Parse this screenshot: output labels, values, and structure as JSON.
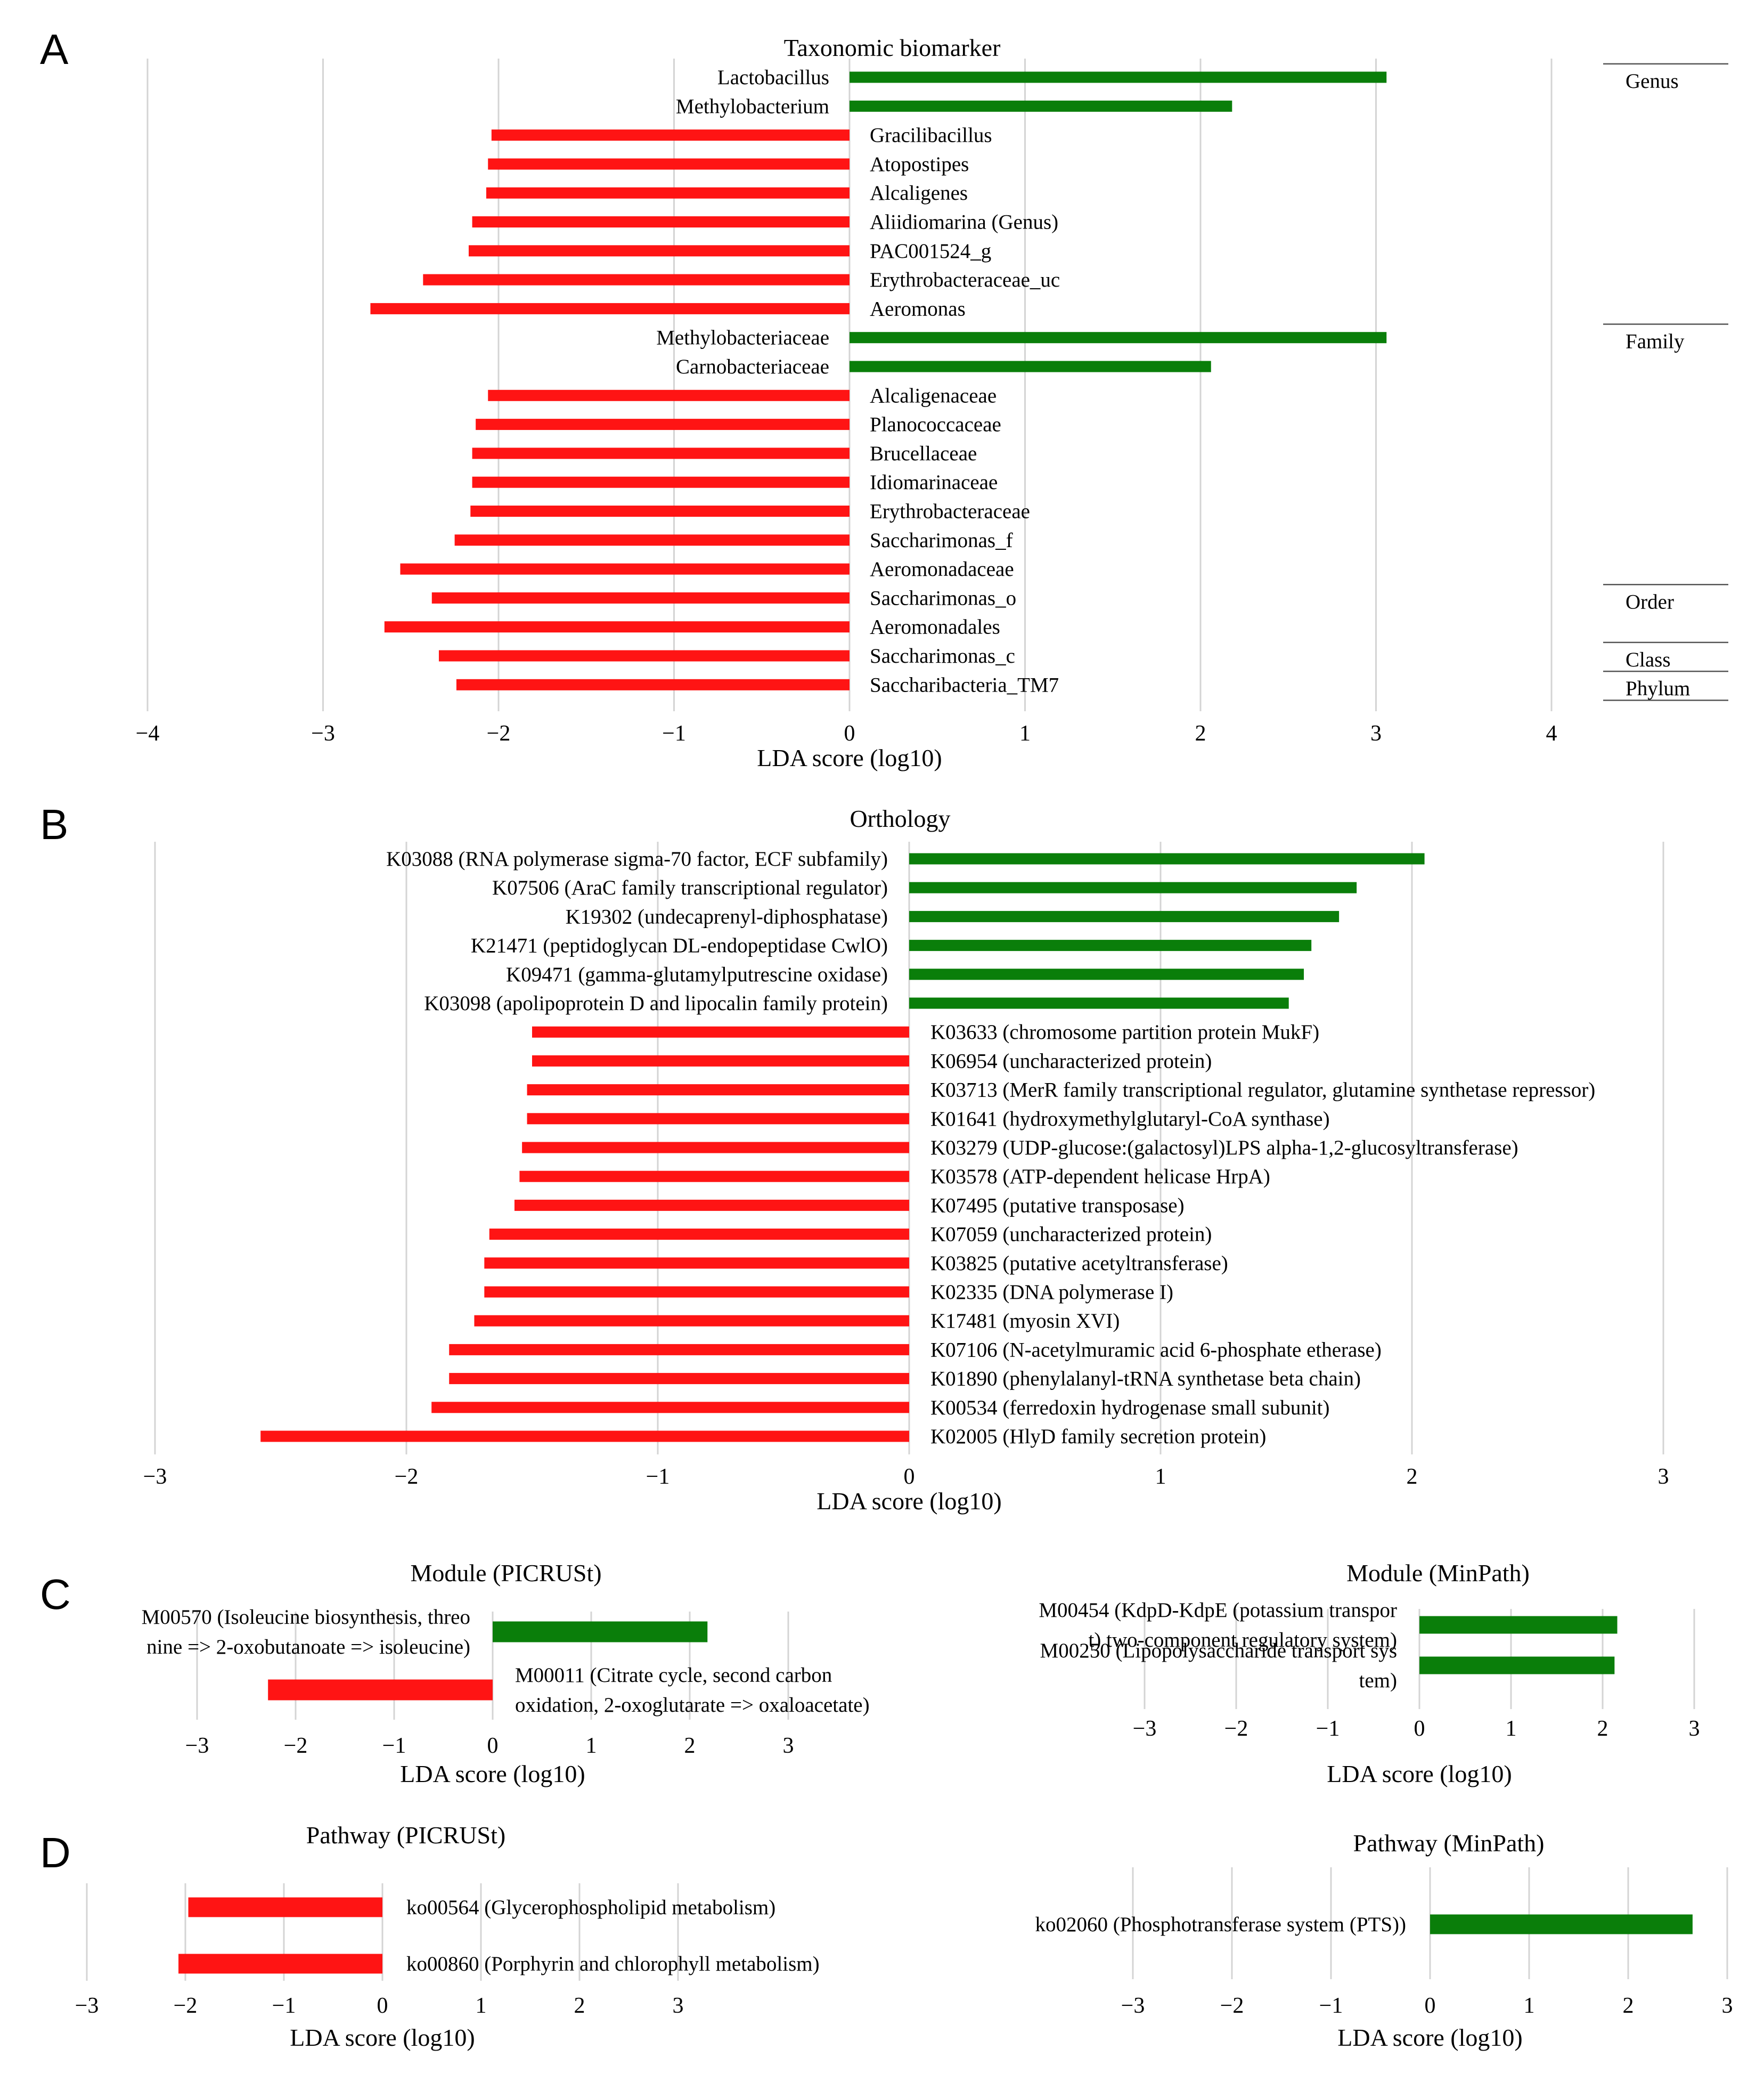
{
  "colors": {
    "positive": "#0a7e0a",
    "negative": "#ff1414",
    "grid": "#d4d4d4"
  },
  "panel_letters": [
    "A",
    "B",
    "C",
    "D"
  ],
  "chart_data": [
    {
      "id": "A",
      "type": "bar",
      "orientation": "horizontal",
      "title": "Taxonomic biomarker",
      "xlabel": "LDA score (log10)",
      "xlim": [
        -4,
        4
      ],
      "xticks": [
        -4,
        -3,
        -2,
        -1,
        0,
        1,
        2,
        3,
        4
      ],
      "xtick_labels": [
        "−4",
        "−3",
        "−2",
        "−1",
        "0",
        "1",
        "2",
        "3",
        "4"
      ],
      "categories": [
        "Lactobacillus",
        "Methylobacterium",
        "Gracilibacillus",
        "Atopostipes",
        "Alcaligenes",
        "Aliidiomarina (Genus)",
        "PAC001524_g",
        "Erythrobacteraceae_uc",
        "Aeromonas",
        "Methylobacteriaceae",
        "Carnobacteriaceae",
        "Alcaligenaceae",
        "Planococcaceae",
        "Brucellaceae",
        "Idiomarinaceae",
        "Erythrobacteraceae",
        "Saccharimonas_f",
        "Aeromonadaceae",
        "Saccharimonas_o",
        "Aeromonadales",
        "Saccharimonas_c",
        "Saccharibacteria_TM7"
      ],
      "values": [
        3.06,
        2.18,
        -2.04,
        -2.06,
        -2.07,
        -2.15,
        -2.17,
        -2.43,
        -2.73,
        3.06,
        2.06,
        -2.06,
        -2.13,
        -2.15,
        -2.15,
        -2.16,
        -2.25,
        -2.56,
        -2.38,
        -2.65,
        -2.34,
        -2.24
      ],
      "tiers": [
        {
          "label": "Genus",
          "first": 0,
          "last": 8
        },
        {
          "label": "Family",
          "first": 9,
          "last": 17
        },
        {
          "label": "Order",
          "first": 18,
          "last": 19
        },
        {
          "label": "Class",
          "first": 20,
          "last": 20
        },
        {
          "label": "Phylum",
          "first": 21,
          "last": 21
        }
      ]
    },
    {
      "id": "B",
      "type": "bar",
      "orientation": "horizontal",
      "title": "Orthology",
      "xlabel": "LDA score (log10)",
      "xlim": [
        -3,
        3
      ],
      "xticks": [
        -3,
        -2,
        -1,
        0,
        1,
        2,
        3
      ],
      "xtick_labels": [
        "−3",
        "−2",
        "−1",
        "0",
        "1",
        "2",
        "3"
      ],
      "categories": [
        "K03088 (RNA polymerase sigma-70 factor, ECF subfamily)",
        "K07506 (AraC family transcriptional regulator)",
        "K19302 (undecaprenyl-diphosphatase)",
        "K21471 (peptidoglycan DL-endopeptidase CwlO)",
        "K09471 (gamma-glutamylputrescine oxidase)",
        "K03098 (apolipoprotein D and lipocalin family protein)",
        "K03633 (chromosome partition protein MukF)",
        "K06954 (uncharacterized protein)",
        "K03713 (MerR family transcriptional regulator, glutamine synthetase repressor)",
        "K01641 (hydroxymethylglutaryl-CoA synthase)",
        "K03279 (UDP-glucose:(galactosyl)LPS alpha-1,2-glucosyltransferase)",
        "K03578 (ATP-dependent helicase HrpA)",
        "K07495 (putative transposase)",
        "K07059 (uncharacterized protein)",
        "K03825 (putative acetyltransferase)",
        "K02335 (DNA polymerase I)",
        "K17481 (myosin XVI)",
        "K07106 (N-acetylmuramic acid 6-phosphate etherase)",
        "K01890 (phenylalanyl-tRNA synthetase beta chain)",
        "K00534 (ferredoxin hydrogenase small subunit)",
        "K02005 (HlyD family secretion protein)"
      ],
      "values": [
        2.05,
        1.78,
        1.71,
        1.6,
        1.57,
        1.51,
        -1.5,
        -1.5,
        -1.52,
        -1.52,
        -1.54,
        -1.55,
        -1.57,
        -1.67,
        -1.69,
        -1.69,
        -1.73,
        -1.83,
        -1.83,
        -1.9,
        -2.58
      ]
    },
    {
      "id": "C1",
      "type": "bar",
      "orientation": "horizontal",
      "title": "Module (PICRUSt)",
      "xlabel": "LDA score (log10)",
      "xlim": [
        -3,
        3
      ],
      "xticks": [
        -3,
        -2,
        -1,
        0,
        1,
        2,
        3
      ],
      "xtick_labels": [
        "−3",
        "−2",
        "−1",
        "0",
        "1",
        "2",
        "3"
      ],
      "categories": [
        [
          "M00570 (Isoleucine biosynthesis, threo",
          "nine => 2-oxobutanoate => isoleucine)"
        ],
        [
          "M00011 (Citrate cycle, second carbon",
          "oxidation, 2-oxoglutarate => oxaloacetate)"
        ]
      ],
      "values": [
        2.18,
        -2.28
      ]
    },
    {
      "id": "C2",
      "type": "bar",
      "orientation": "horizontal",
      "title": "Module (MinPath)",
      "xlabel": "LDA score (log10)",
      "xlim": [
        -3,
        3
      ],
      "xticks": [
        -3,
        -2,
        -1,
        0,
        1,
        2,
        3
      ],
      "xtick_labels": [
        "−3",
        "−2",
        "−1",
        "0",
        "1",
        "2",
        "3"
      ],
      "categories": [
        [
          "M00454 (KdpD-KdpE (potassium transpor",
          "t) two-component regulatory system)"
        ],
        [
          "M00250 (Lipopolysaccharide transport sys",
          "tem)"
        ]
      ],
      "values": [
        2.16,
        2.13
      ]
    },
    {
      "id": "D1",
      "type": "bar",
      "orientation": "horizontal",
      "title": "Pathway (PICRUSt)",
      "xlabel": "LDA score (log10)",
      "xlim": [
        -3,
        3
      ],
      "xticks": [
        -3,
        -2,
        -1,
        0,
        1,
        2,
        3
      ],
      "xtick_labels": [
        "−3",
        "−2",
        "−1",
        "0",
        "1",
        "2",
        "3"
      ],
      "categories": [
        [
          "ko00564 (Glycerophospholipid metabolism)"
        ],
        [
          "ko00860 (Porphyrin and chlorophyll metabolism)"
        ]
      ],
      "values": [
        -1.97,
        -2.07
      ]
    },
    {
      "id": "D2",
      "type": "bar",
      "orientation": "horizontal",
      "title": "Pathway (MinPath)",
      "xlabel": "LDA score (log10)",
      "xlim": [
        -3,
        3
      ],
      "xticks": [
        -3,
        -2,
        -1,
        0,
        1,
        2,
        3
      ],
      "xtick_labels": [
        "−3",
        "−2",
        "−1",
        "0",
        "1",
        "2",
        "3"
      ],
      "categories": [
        [
          "ko02060 (Phosphotransferase system (PTS))"
        ]
      ],
      "values": [
        2.65
      ]
    }
  ]
}
